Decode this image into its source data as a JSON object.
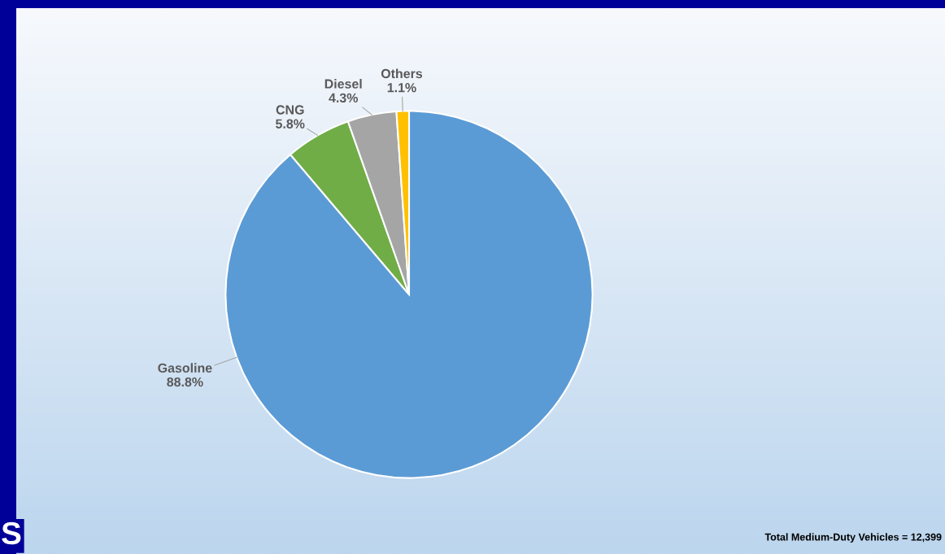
{
  "chart_data": {
    "type": "pie",
    "categories": [
      "Gasoline",
      "CNG",
      "Diesel",
      "Others"
    ],
    "values": [
      88.8,
      5.8,
      4.3,
      1.1
    ],
    "colors": [
      "#5b9bd5",
      "#70ad47",
      "#a5a5a5",
      "#ffc000"
    ],
    "value_labels": [
      "88.8%",
      "5.8%",
      "4.3%",
      "1.1%"
    ],
    "legend": false,
    "annotations": [
      "Total Medium-Duty Vehicles = 12,399",
      "S"
    ]
  }
}
